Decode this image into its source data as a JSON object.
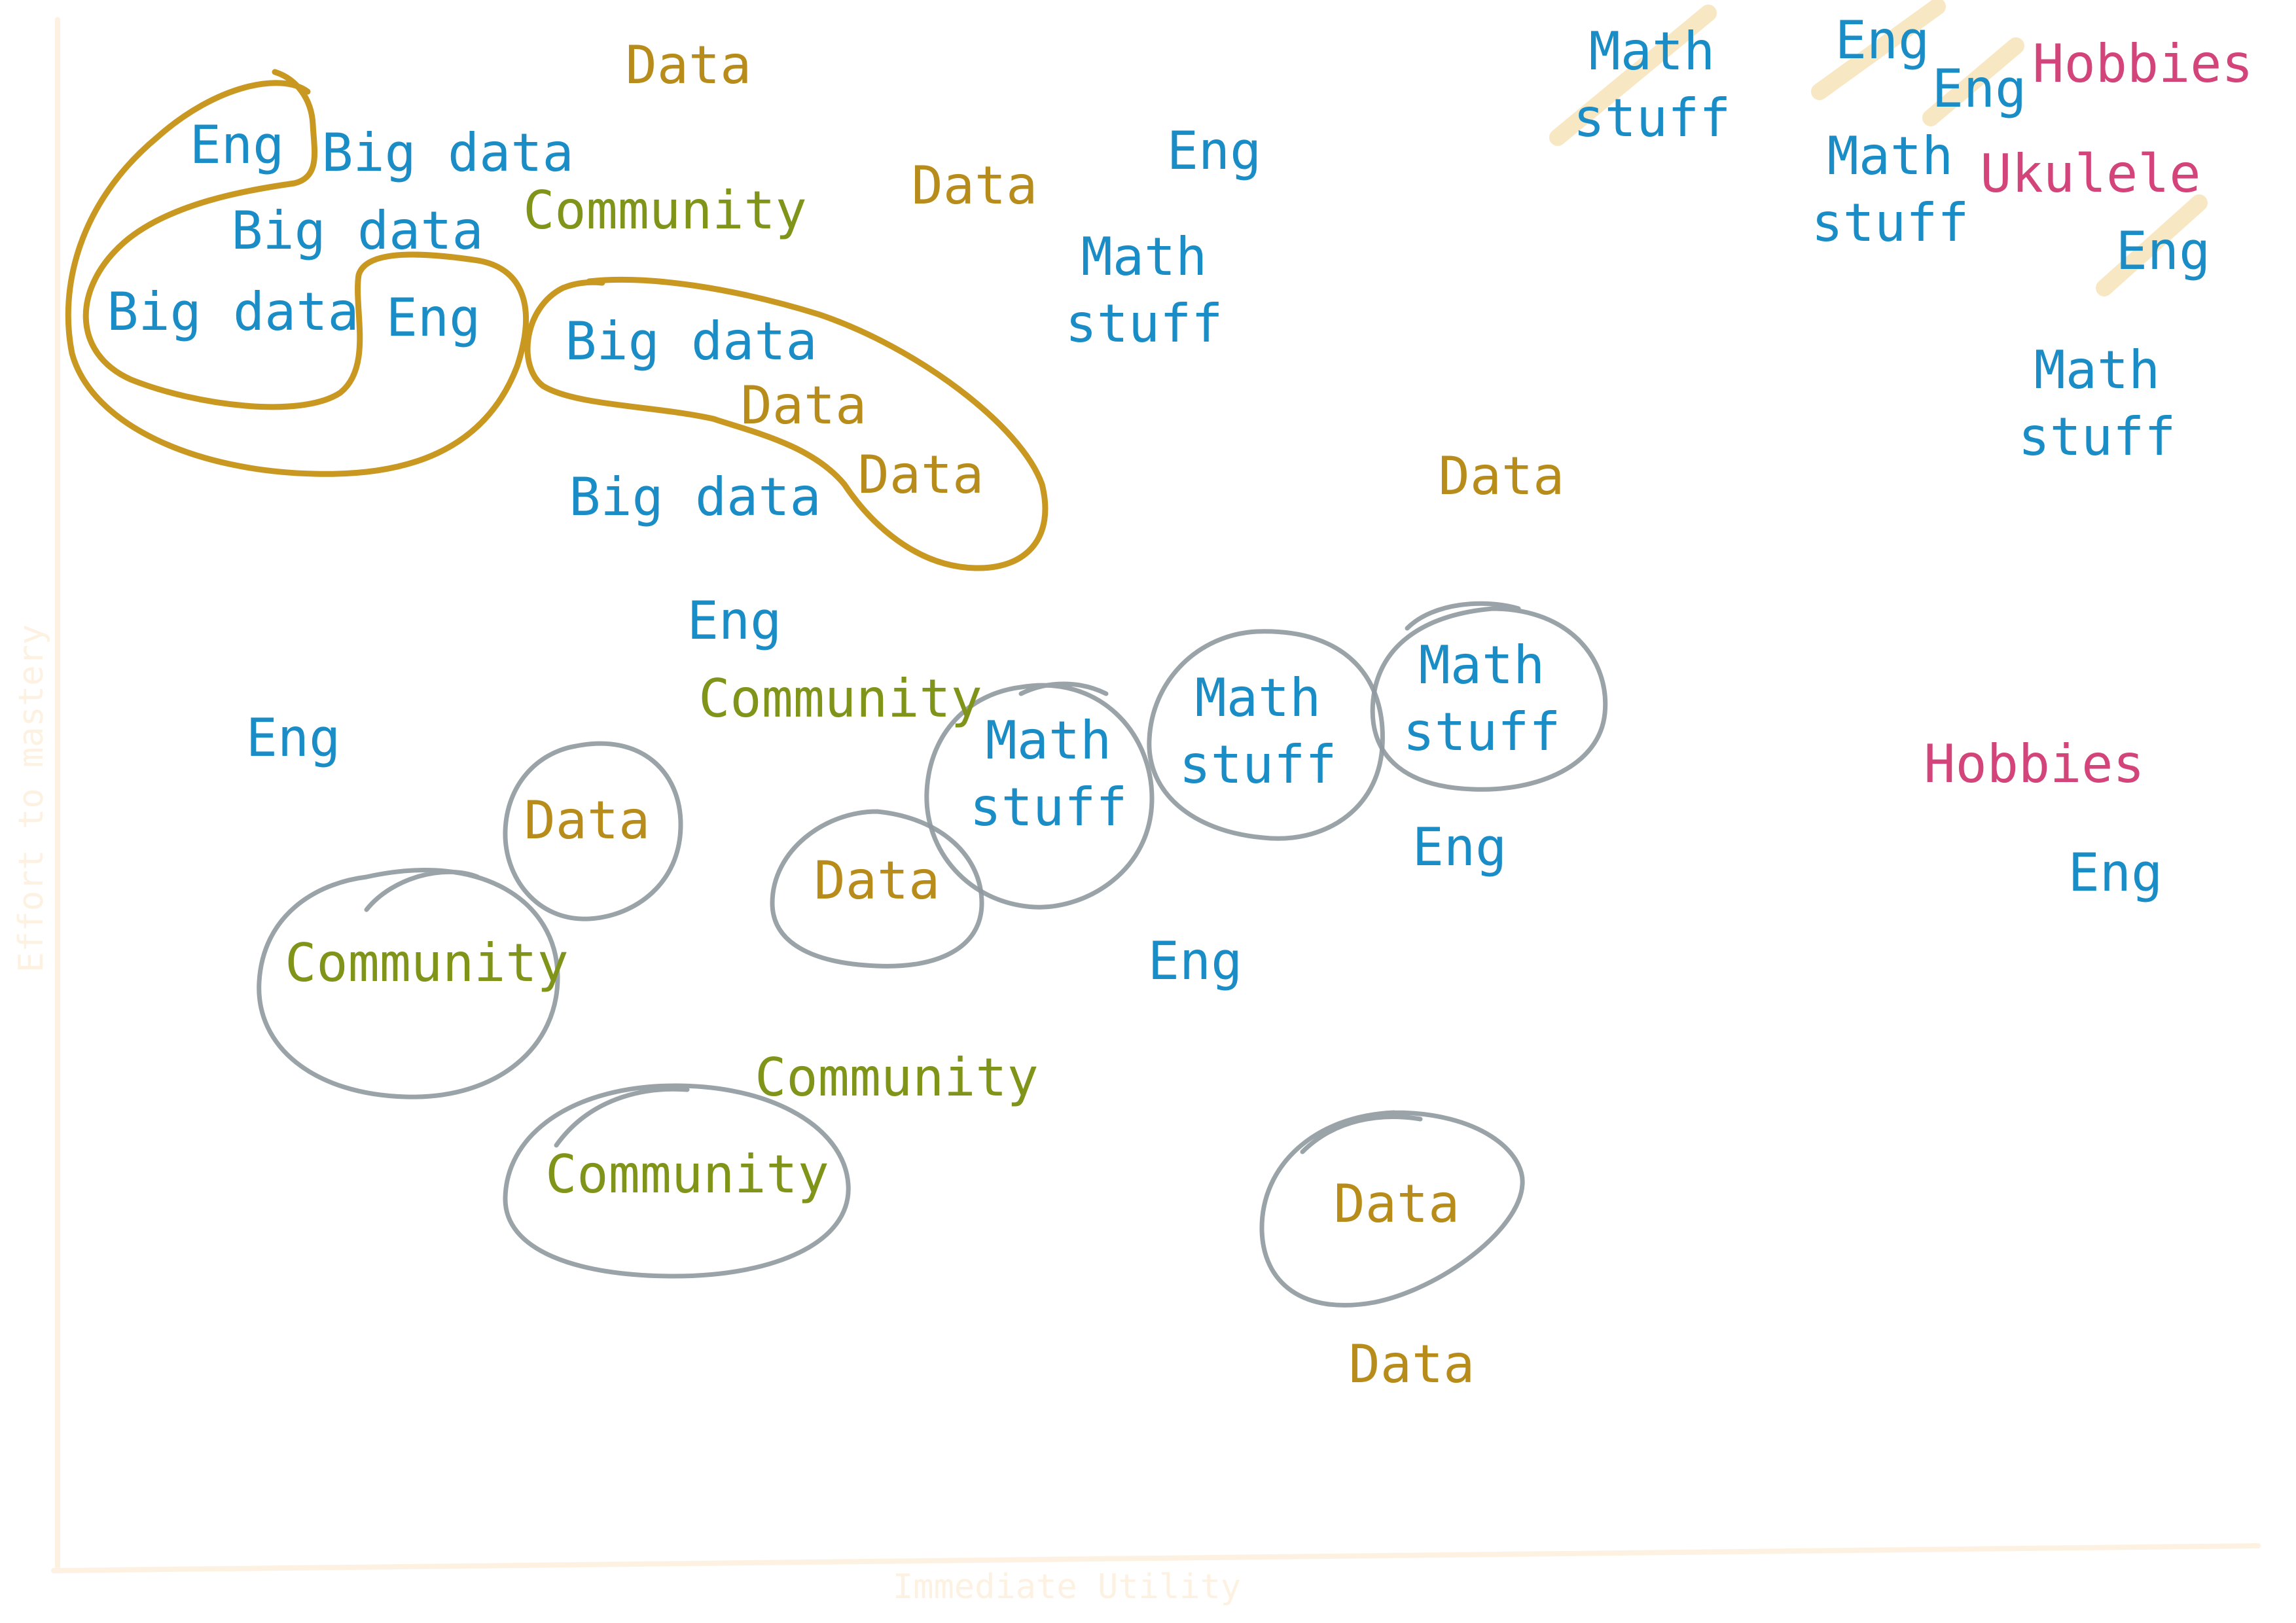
{
  "axes": {
    "x_label": "Immediate Utility",
    "y_label": "Effort to mastery",
    "color": "#fdf1e2"
  },
  "colors": {
    "eng": "#1a8cc6",
    "data": "#b88c1a",
    "community": "#7f9419",
    "hobbies": "#d3447a",
    "outline_gold": "#c99820",
    "outline_gray": "#8f999e",
    "strike": "#f7e3b8"
  },
  "categories": {
    "eng": "Eng",
    "big_data": "Big data",
    "data": "Data",
    "math": "Math\nstuff",
    "community": "Community",
    "hobbies": "Hobbies",
    "ukulele": "Ukulele"
  },
  "labels": [
    {
      "id": "eng-1",
      "text": "Eng"
    },
    {
      "id": "big-data-1",
      "text": "Big data"
    },
    {
      "id": "big-data-2",
      "text": "Big data"
    },
    {
      "id": "big-data-3",
      "text": "Big data"
    },
    {
      "id": "eng-2",
      "text": "Eng"
    },
    {
      "id": "data-1",
      "text": "Data"
    },
    {
      "id": "community-1",
      "text": "Community"
    },
    {
      "id": "big-data-4",
      "text": "Big data"
    },
    {
      "id": "data-2",
      "text": "Data"
    },
    {
      "id": "data-3",
      "text": "Data"
    },
    {
      "id": "big-data-5",
      "text": "Big data"
    },
    {
      "id": "data-4",
      "text": "Data"
    },
    {
      "id": "eng-3",
      "text": "Eng"
    },
    {
      "id": "math-1",
      "text": "Math\nstuff"
    },
    {
      "id": "math-2",
      "text": "Math\nstuff"
    },
    {
      "id": "eng-4",
      "text": "Eng"
    },
    {
      "id": "eng-5",
      "text": "Eng"
    },
    {
      "id": "hobbies-1",
      "text": "Hobbies"
    },
    {
      "id": "math-3",
      "text": "Math\nstuff"
    },
    {
      "id": "ukulele-1",
      "text": "Ukulele"
    },
    {
      "id": "eng-6",
      "text": "Eng"
    },
    {
      "id": "math-4",
      "text": "Math\nstuff"
    },
    {
      "id": "data-5",
      "text": "Data"
    },
    {
      "id": "eng-7",
      "text": "Eng"
    },
    {
      "id": "community-2",
      "text": "Community"
    },
    {
      "id": "eng-8",
      "text": "Eng"
    },
    {
      "id": "math-5",
      "text": "Math\nstuff"
    },
    {
      "id": "math-6",
      "text": "Math\nstuff"
    },
    {
      "id": "math-7",
      "text": "Math\nstuff"
    },
    {
      "id": "data-6",
      "text": "Data"
    },
    {
      "id": "data-7",
      "text": "Data"
    },
    {
      "id": "eng-9",
      "text": "Eng"
    },
    {
      "id": "community-3",
      "text": "Community"
    },
    {
      "id": "eng-10",
      "text": "Eng"
    },
    {
      "id": "community-4",
      "text": "Community"
    },
    {
      "id": "community-5",
      "text": "Community"
    },
    {
      "id": "data-8",
      "text": "Data"
    },
    {
      "id": "data-9",
      "text": "Data"
    },
    {
      "id": "hobbies-2",
      "text": "Hobbies"
    },
    {
      "id": "eng-11",
      "text": "Eng"
    }
  ]
}
